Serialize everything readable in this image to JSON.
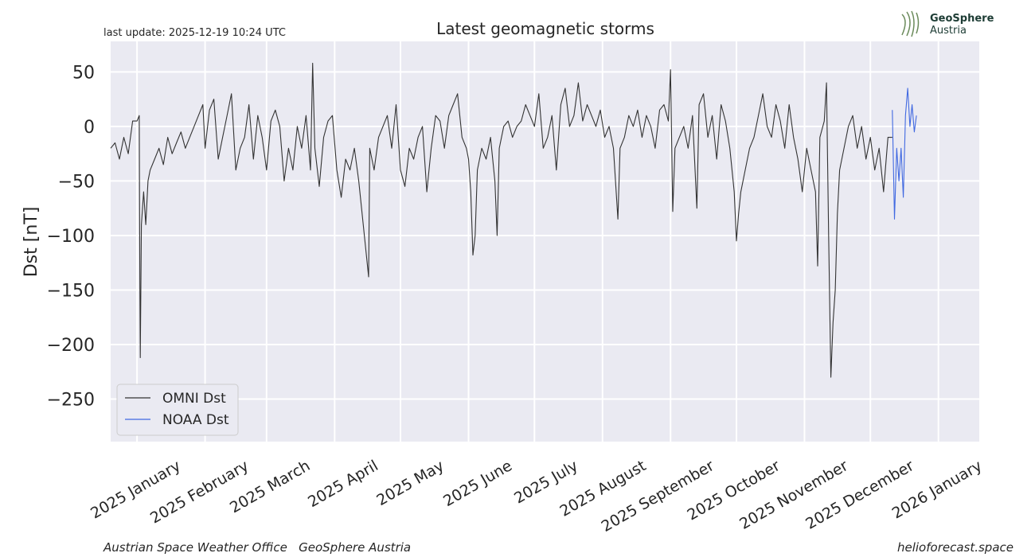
{
  "chart_data": {
    "type": "line",
    "title": "Latest geomagnetic storms",
    "subtitle": "last update: 2025-12-19 10:24 UTC",
    "ylabel": "Dst [nT]",
    "logo": [
      "GeoSphere",
      "Austria"
    ],
    "footer_left": "Austrian Space Weather Office   GeoSphere Austria",
    "footer_right": "helioforecast.space",
    "xlim": [
      -12,
      383.6
    ],
    "xticks": [
      {
        "value": 0,
        "label": "2025 January"
      },
      {
        "value": 31,
        "label": "2025 February"
      },
      {
        "value": 59,
        "label": "2025 March"
      },
      {
        "value": 90,
        "label": "2025 April"
      },
      {
        "value": 120,
        "label": "2025 May"
      },
      {
        "value": 151,
        "label": "2025 June"
      },
      {
        "value": 181,
        "label": "2025 July"
      },
      {
        "value": 212,
        "label": "2025 August"
      },
      {
        "value": 243,
        "label": "2025 September"
      },
      {
        "value": 273,
        "label": "2025 October"
      },
      {
        "value": 304,
        "label": "2025 November"
      },
      {
        "value": 334,
        "label": "2025 December"
      },
      {
        "value": 365,
        "label": "2026 January"
      }
    ],
    "ylim": [
      -289,
      78
    ],
    "yticks": [
      50,
      0,
      {
        "value": -50,
        "label": "−50"
      },
      {
        "value": -100,
        "label": "−100"
      },
      {
        "value": -150,
        "label": "−150"
      },
      {
        "value": -200,
        "label": "−200"
      },
      {
        "value": -250,
        "label": "−250"
      }
    ],
    "grid": true,
    "legend": "lower left",
    "series": [
      {
        "name": "OMNI Dst",
        "color": "#333333",
        "x": [
          -12,
          -10,
          -8,
          -6,
          -4,
          -2,
          0,
          1,
          1.3,
          1.5,
          2,
          3,
          4,
          5,
          6,
          8,
          10,
          12,
          14,
          16,
          18,
          20,
          22,
          24,
          26,
          28,
          30,
          31,
          33,
          35,
          37,
          39,
          41,
          43,
          45,
          47,
          49,
          51,
          53,
          55,
          57,
          59,
          61,
          63,
          65,
          67,
          69,
          71,
          73,
          75,
          77,
          79,
          80,
          81,
          83,
          85,
          87,
          89,
          91,
          93,
          95,
          97,
          99,
          101,
          105.5,
          106,
          108,
          110,
          112,
          114,
          116,
          118,
          120,
          122,
          124,
          126,
          128,
          130,
          132,
          134,
          136,
          138,
          140,
          142,
          144,
          146,
          148,
          150,
          151,
          152,
          153,
          154,
          155,
          157,
          159,
          161,
          163,
          164,
          165,
          167,
          169,
          171,
          173,
          175,
          177,
          179,
          181,
          183,
          185,
          187,
          189,
          191,
          193,
          195,
          197,
          199,
          201,
          203,
          205,
          207,
          209,
          211,
          213,
          215,
          217,
          219,
          220,
          222,
          224,
          226,
          228,
          230,
          232,
          234,
          236,
          238,
          240,
          242,
          243,
          244,
          245,
          247,
          249,
          251,
          253,
          255,
          256,
          258,
          260,
          262,
          264,
          266,
          268,
          270,
          272,
          273,
          274,
          275,
          277,
          279,
          281,
          283,
          285,
          287,
          289,
          291,
          293,
          295,
          297,
          299,
          301,
          303,
          305,
          307,
          309,
          310,
          311,
          313,
          314,
          315,
          316,
          317,
          318,
          319,
          320,
          322,
          324,
          326,
          328,
          330,
          332,
          334,
          336,
          338,
          340,
          342,
          344
        ],
        "values": [
          -20,
          -15,
          -30,
          -10,
          -25,
          5,
          5,
          10,
          -150,
          -212,
          -90,
          -60,
          -90,
          -50,
          -40,
          -30,
          -20,
          -35,
          -10,
          -25,
          -15,
          -5,
          -20,
          -10,
          0,
          10,
          20,
          -20,
          15,
          25,
          -30,
          -10,
          10,
          30,
          -40,
          -20,
          -10,
          20,
          -30,
          10,
          -10,
          -40,
          5,
          15,
          0,
          -50,
          -20,
          -40,
          0,
          -20,
          10,
          -40,
          58,
          -20,
          -55,
          -10,
          5,
          10,
          -40,
          -65,
          -30,
          -40,
          -20,
          -50,
          -138,
          -20,
          -40,
          -10,
          0,
          10,
          -20,
          20,
          -40,
          -55,
          -20,
          -30,
          -10,
          0,
          -60,
          -20,
          10,
          5,
          -20,
          10,
          20,
          30,
          -10,
          -20,
          -30,
          -60,
          -118,
          -100,
          -40,
          -20,
          -30,
          -10,
          -50,
          -100,
          -20,
          0,
          5,
          -10,
          0,
          5,
          20,
          10,
          0,
          30,
          -20,
          -10,
          10,
          -40,
          20,
          35,
          0,
          10,
          40,
          5,
          20,
          10,
          0,
          15,
          -10,
          0,
          -20,
          -85,
          -20,
          -10,
          10,
          0,
          15,
          -10,
          10,
          0,
          -20,
          15,
          20,
          5,
          52,
          -78,
          -20,
          -10,
          0,
          -20,
          10,
          -75,
          20,
          30,
          -10,
          10,
          -30,
          20,
          5,
          -20,
          -60,
          -105,
          -80,
          -60,
          -40,
          -20,
          -10,
          10,
          30,
          0,
          -10,
          20,
          5,
          -20,
          20,
          -10,
          -30,
          -60,
          -20,
          -40,
          -60,
          -128,
          -10,
          5,
          40,
          -100,
          -230,
          -180,
          -150,
          -80,
          -40,
          -20,
          0,
          10,
          -20,
          0,
          -30,
          -10,
          -40,
          -20,
          -60,
          -10,
          -10
        ]
      },
      {
        "name": "NOAA Dst",
        "color": "#4169e1",
        "x": [
          344,
          345,
          346,
          347,
          348,
          349,
          350,
          351,
          352,
          353,
          354,
          355
        ],
        "values": [
          15,
          -85,
          -20,
          -50,
          -20,
          -65,
          10,
          35,
          0,
          20,
          -5,
          10
        ]
      }
    ]
  }
}
